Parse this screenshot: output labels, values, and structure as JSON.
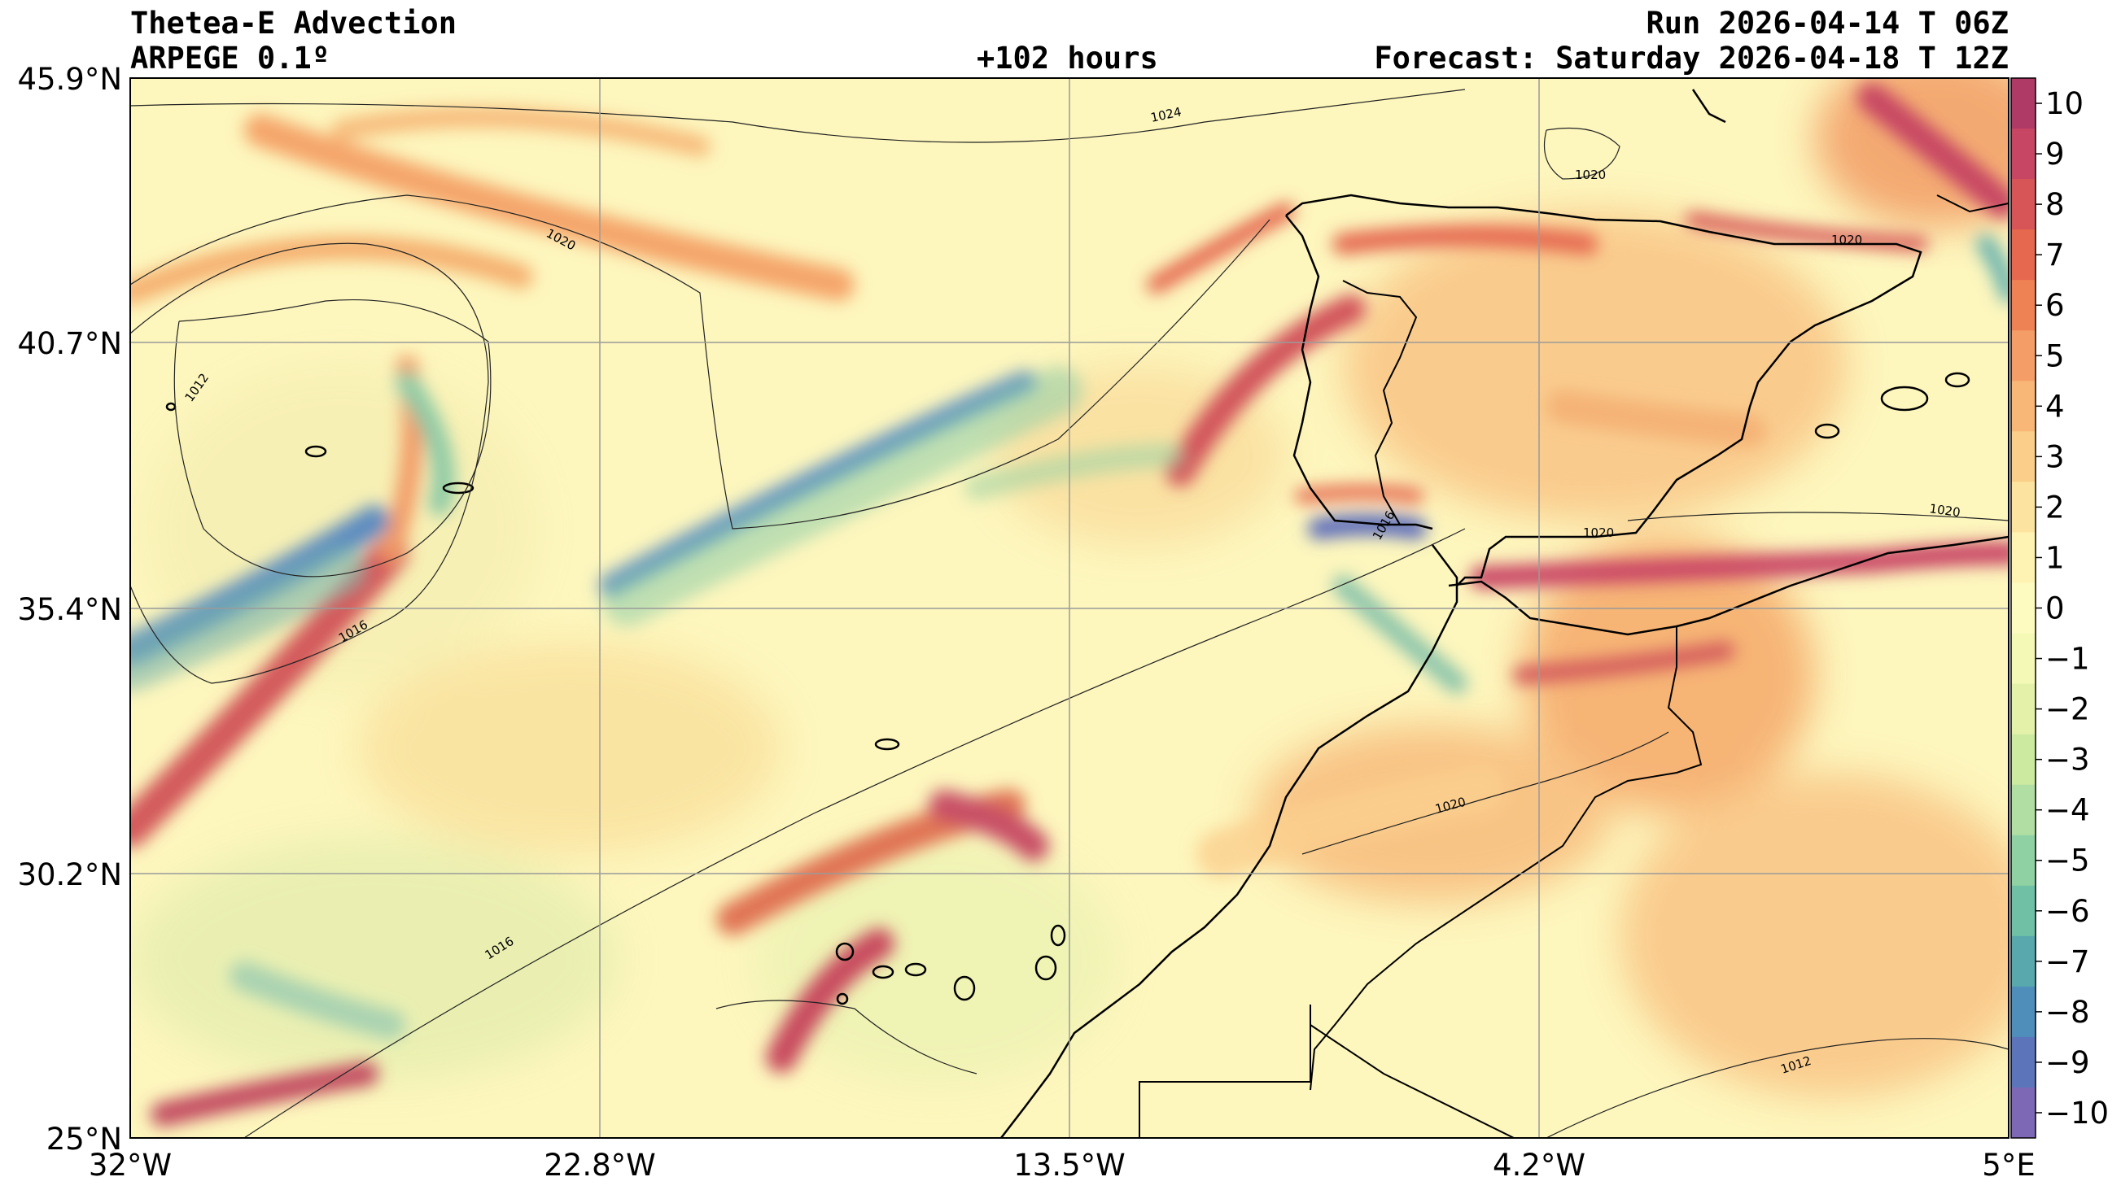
{
  "header": {
    "title": "Thetea-E Advection",
    "model": "ARPEGE 0.1º",
    "lead": "+102 hours",
    "run": "Run 2026-04-14 T 06Z",
    "forecast": "Forecast: Saturday 2026-04-18 T 12Z"
  },
  "map": {
    "lat_labels": [
      "45.9°N",
      "40.7°N",
      "35.4°N",
      "30.2°N",
      "25°N"
    ],
    "lon_labels": [
      "32°W",
      "22.8°W",
      "13.5°W",
      "4.2°W",
      "5°E"
    ],
    "isobar_labels": [
      "1024",
      "1020",
      "1020",
      "1020",
      "1012",
      "1016",
      "1016",
      "1016",
      "1020",
      "1020",
      "1020",
      "1012"
    ]
  },
  "colorbar": {
    "ticks": [
      "10",
      "9",
      "8",
      "7",
      "6",
      "5",
      "4",
      "3",
      "2",
      "1",
      "0",
      "−1",
      "−2",
      "−3",
      "−4",
      "−5",
      "−6",
      "−7",
      "−8",
      "−9",
      "−10"
    ],
    "colors": [
      "#b03a66",
      "#c74663",
      "#d75557",
      "#e5684f",
      "#ef8254",
      "#f59d66",
      "#f8b677",
      "#fbcf8a",
      "#fde3a0",
      "#fef3b3",
      "#fefbc0",
      "#f4f9b6",
      "#e4f2a9",
      "#cdeaa1",
      "#b1dfa3",
      "#90d1a4",
      "#70c0a6",
      "#58a8ad",
      "#4f8ebb",
      "#5c75ba",
      "#7c68b5"
    ]
  }
}
